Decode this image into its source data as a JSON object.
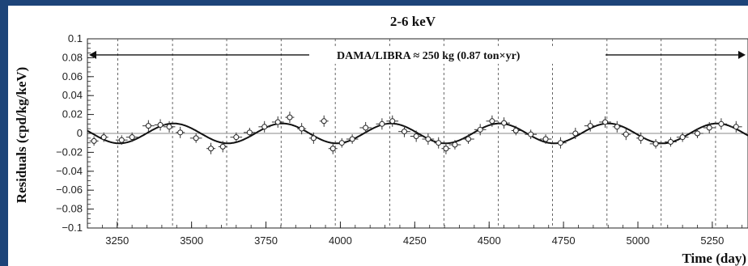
{
  "chart_data": {
    "type": "scatter",
    "title": "2-6 keV",
    "xlabel": "Time (day)",
    "ylabel": "Residuals (cpd/kg/keV)",
    "xlim": [
      3150,
      5370
    ],
    "ylim": [
      -0.1,
      0.1
    ],
    "xticks": [
      3250,
      3500,
      3750,
      4000,
      4250,
      4500,
      4750,
      5000,
      5250
    ],
    "yticks": [
      0.1,
      0.08,
      0.06,
      0.04,
      0.02,
      0,
      -0.02,
      -0.04,
      -0.06,
      -0.08,
      -0.1
    ],
    "grid": false,
    "annotation": "DAMA/LIBRA ≈ 250 kg   (0.87 ton×yr)",
    "annotation_arrow": {
      "from_x": 3150,
      "to_x": 5370,
      "y": 0.083
    },
    "reference_line_y": 0,
    "vertical_dashed_lines_x": [
      3252,
      3436,
      3618,
      3801,
      3983,
      4166,
      4348,
      4531,
      4713,
      4896,
      5078,
      5261
    ],
    "fit_curve": {
      "function": "A*cos(2*pi*(t - t0)/T)",
      "A": 0.0105,
      "T": 365.25,
      "t0": 152.5
    },
    "series": [
      {
        "x": [
          3172,
          3205,
          3265,
          3300,
          3355,
          3395,
          3425,
          3462,
          3515,
          3565,
          3605,
          3650,
          3695,
          3745,
          3790,
          3830,
          3870,
          3910,
          3945,
          3975,
          4005,
          4040,
          4085,
          4140,
          4175,
          4215,
          4255,
          4295,
          4330,
          4355,
          4385,
          4430,
          4470,
          4510,
          4550,
          4590,
          4640,
          4690,
          4740,
          4790,
          4840,
          4890,
          4930,
          4960,
          5010,
          5060,
          5110,
          5150,
          5200,
          5240,
          5280,
          5330
        ],
        "y": [
          -0.008,
          -0.004,
          -0.007,
          -0.004,
          0.008,
          0.009,
          0.007,
          0.001,
          -0.005,
          -0.016,
          -0.014,
          -0.004,
          0.001,
          0.007,
          0.012,
          0.017,
          0.005,
          -0.005,
          0.013,
          -0.016,
          -0.01,
          -0.006,
          0.006,
          0.01,
          0.013,
          0.002,
          -0.003,
          -0.006,
          -0.01,
          -0.016,
          -0.012,
          -0.006,
          0.004,
          0.013,
          0.011,
          0.003,
          -0.001,
          -0.006,
          -0.01,
          0.0,
          0.008,
          0.012,
          0.007,
          -0.001,
          -0.005,
          -0.011,
          -0.009,
          -0.004,
          0.0,
          0.006,
          0.01,
          0.007
        ],
        "xerr": [
          15,
          15,
          20,
          20,
          20,
          20,
          20,
          15,
          20,
          15,
          15,
          20,
          20,
          20,
          20,
          15,
          15,
          15,
          15,
          15,
          15,
          20,
          20,
          20,
          20,
          20,
          20,
          20,
          15,
          15,
          20,
          20,
          20,
          20,
          20,
          15,
          20,
          20,
          20,
          20,
          20,
          20,
          15,
          15,
          15,
          20,
          20,
          20,
          20,
          20,
          20,
          20
        ],
        "yerr": [
          0.005,
          0.005,
          0.005,
          0.005,
          0.006,
          0.006,
          0.006,
          0.006,
          0.005,
          0.006,
          0.006,
          0.005,
          0.005,
          0.006,
          0.006,
          0.006,
          0.006,
          0.006,
          0.006,
          0.006,
          0.005,
          0.005,
          0.006,
          0.006,
          0.006,
          0.006,
          0.006,
          0.006,
          0.006,
          0.006,
          0.005,
          0.005,
          0.006,
          0.006,
          0.006,
          0.005,
          0.005,
          0.005,
          0.006,
          0.006,
          0.006,
          0.006,
          0.006,
          0.006,
          0.006,
          0.005,
          0.005,
          0.005,
          0.005,
          0.006,
          0.006,
          0.006
        ]
      }
    ]
  }
}
